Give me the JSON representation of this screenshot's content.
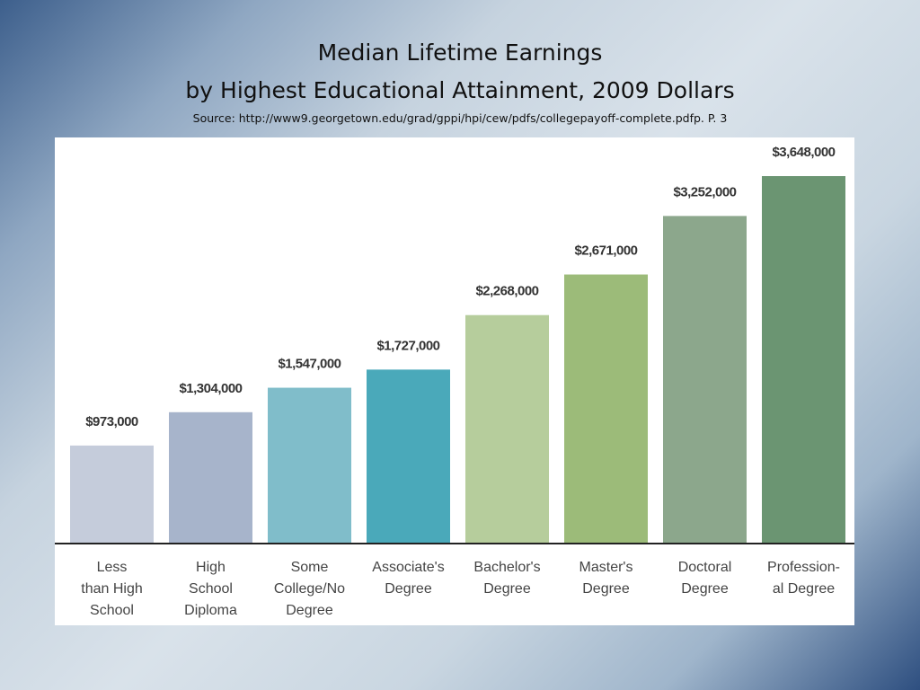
{
  "slide": {
    "title_line1": "Median Lifetime Earnings",
    "title_line2": "by Highest Educational Attainment, 2009 Dollars",
    "source": "Source:  http://www9.georgetown.edu/grad/gppi/hpi/cew/pdfs/collegepayoff-complete.pdfp. P. 3"
  },
  "chart_data": {
    "type": "bar",
    "title": "",
    "xlabel": "",
    "ylabel": "",
    "categories": [
      [
        "Less",
        "than High",
        "School"
      ],
      [
        "High",
        "School",
        "Diploma"
      ],
      [
        "Some",
        "College/No",
        "Degree"
      ],
      [
        "Associate's",
        "Degree"
      ],
      [
        "Bachelor's",
        "Degree"
      ],
      [
        "Master's",
        "Degree"
      ],
      [
        "Doctoral",
        "Degree"
      ],
      [
        "Profession-",
        "al Degree"
      ]
    ],
    "values": [
      973000,
      1304000,
      1547000,
      1727000,
      2268000,
      2671000,
      3252000,
      3648000
    ],
    "data_labels": [
      "$973,000",
      "$1,304,000",
      "$1,547,000",
      "$1,727,000",
      "$2,268,000",
      "$2,671,000",
      "$3,252,000",
      "$3,648,000"
    ],
    "bar_colors": [
      "#c5ccdb",
      "#a7b4cb",
      "#80bdca",
      "#4aa9ba",
      "#b6cd9c",
      "#9cbb79",
      "#8ca78c",
      "#6b9572"
    ],
    "ylim": [
      0,
      4000000
    ],
    "grid": false,
    "legend": "none"
  }
}
